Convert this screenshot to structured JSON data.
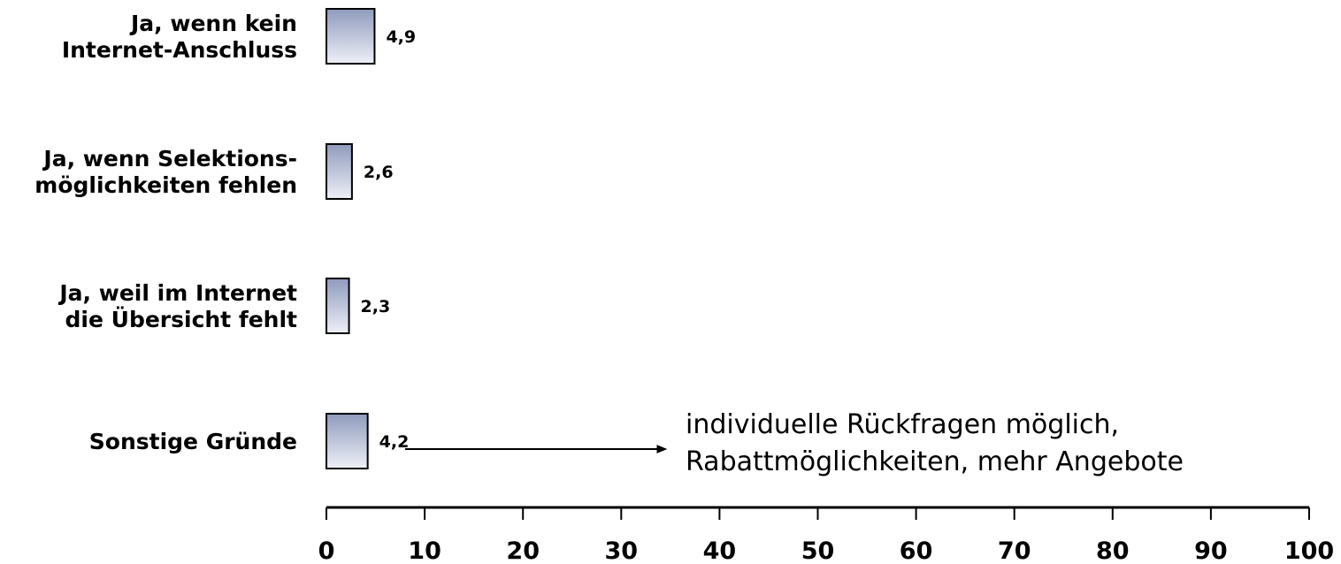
{
  "chart_data": {
    "type": "bar",
    "orientation": "horizontal",
    "categories": [
      [
        "Ja, wenn kein",
        "Internet-Anschluss"
      ],
      [
        "Ja, wenn Selektions-",
        "möglichkeiten fehlen"
      ],
      [
        "Ja, weil im Internet",
        "die Übersicht fehlt"
      ],
      [
        "Sonstige Gründe"
      ]
    ],
    "values": [
      4.9,
      2.6,
      2.3,
      4.2
    ],
    "value_labels": [
      "4,9",
      "2,6",
      "2,3",
      "4,2"
    ],
    "xlim": [
      0,
      100
    ],
    "xticks": [
      0,
      10,
      20,
      30,
      40,
      50,
      60,
      70,
      80,
      90,
      100
    ],
    "grid": false,
    "legend": "none",
    "bar_fill_top": "#8f9bbd",
    "bar_fill_bottom": "#eef0f7",
    "bar_stroke": "#000000",
    "annotation": {
      "lines": [
        "individuelle Rückfragen möglich,",
        "Rabattmöglichkeiten, mehr Angebote"
      ],
      "arrow_from_value": 8,
      "arrow_to_value": 34.5,
      "category_index": 3
    }
  }
}
